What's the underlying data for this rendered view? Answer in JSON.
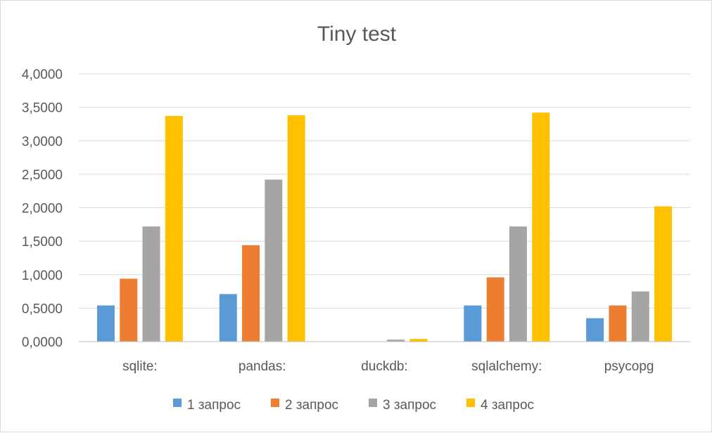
{
  "chart_data": {
    "type": "bar",
    "title": "Tiny test",
    "categories": [
      "sqlite:",
      "pandas:",
      "duckdb:",
      "sqlalchemy:",
      "psycopg"
    ],
    "series": [
      {
        "name": "1 запрос",
        "color": "#5b9bd5",
        "values": [
          0.54,
          0.71,
          0.0,
          0.54,
          0.35
        ]
      },
      {
        "name": "2 запрос",
        "color": "#ed7d31",
        "values": [
          0.94,
          1.44,
          0.0,
          0.96,
          0.54
        ]
      },
      {
        "name": "3 запрос",
        "color": "#a5a5a5",
        "values": [
          1.72,
          2.42,
          0.03,
          1.72,
          0.75
        ]
      },
      {
        "name": "4 запрос",
        "color": "#ffc000",
        "values": [
          3.37,
          3.38,
          0.04,
          3.42,
          2.02
        ]
      }
    ],
    "yticks": [
      "0,0000",
      "0,5000",
      "1,0000",
      "1,5000",
      "2,0000",
      "2,5000",
      "3,0000",
      "3,5000",
      "4,0000"
    ],
    "ylim": [
      0,
      4
    ],
    "grid": true,
    "legend_position": "bottom"
  }
}
